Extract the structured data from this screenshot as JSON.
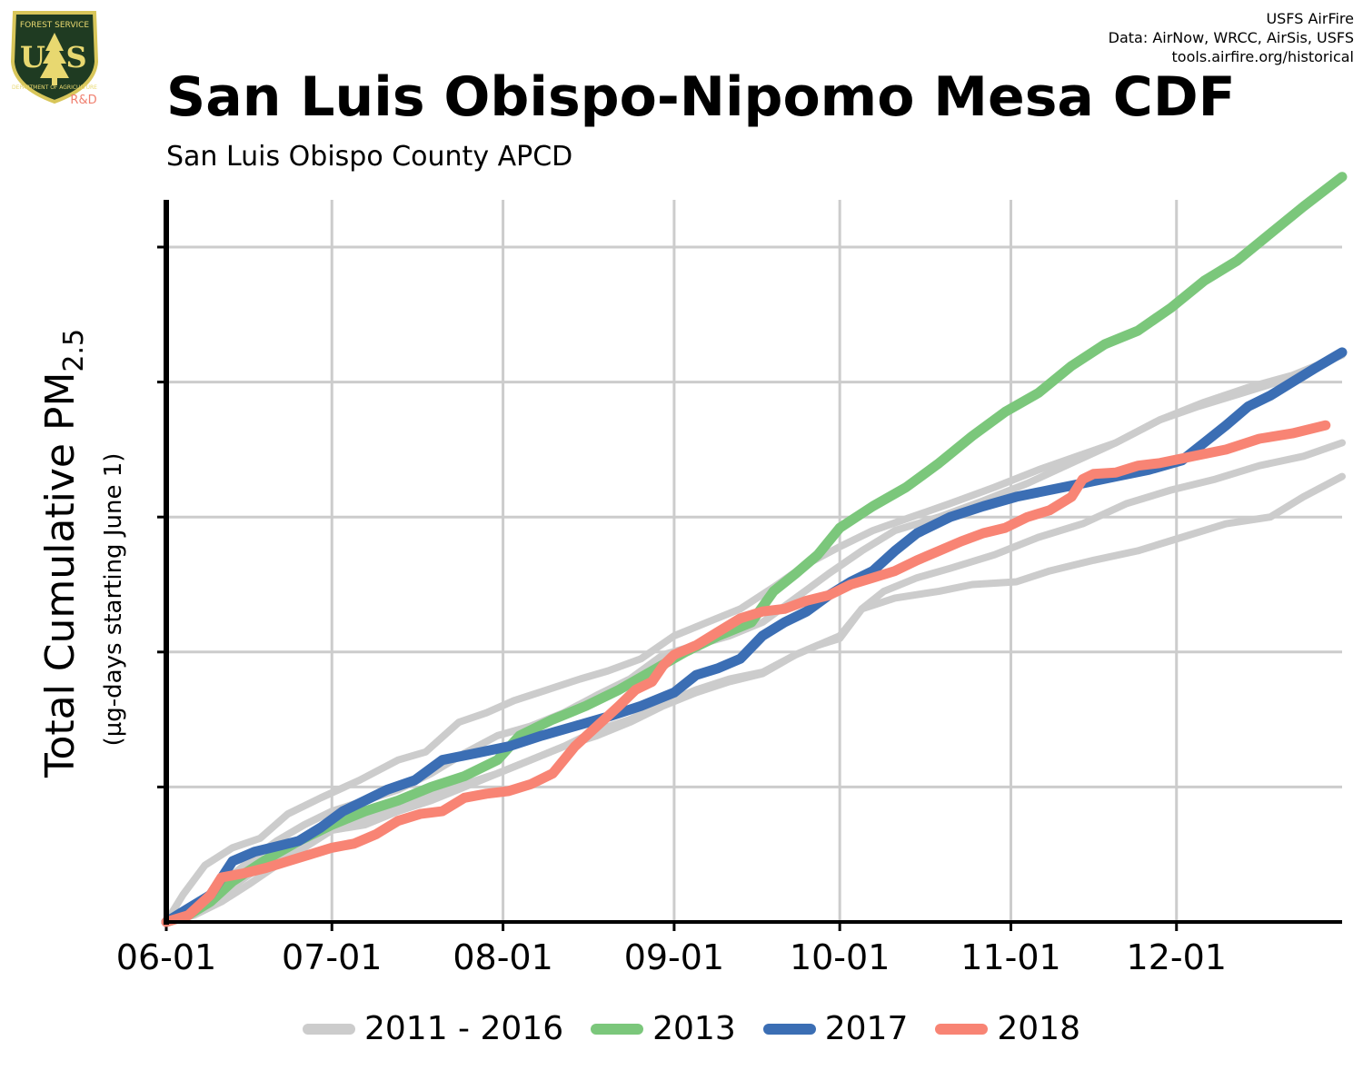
{
  "header": {
    "credits": [
      "USFS AirFire",
      "Data: AirNow, WRCC, AirSis, USFS",
      "tools.airfire.org/historical"
    ],
    "logo_text": [
      "FOREST SERVICE",
      "U",
      "S",
      "DEPARTMENT OF AGRICULTURE",
      "R&D"
    ],
    "logo_colors": {
      "shield": "#1f3b22",
      "border": "#d8c65a",
      "text": "#e8d870",
      "rd": "#f08070"
    }
  },
  "chart_data": {
    "type": "line",
    "title": "San Luis Obispo-Nipomo Mesa CDF",
    "subtitle": "San Luis Obispo County APCD",
    "ylabel": "Total Cumulative PM",
    "ylabel_subscript": "2.5",
    "ylabel_units": "(µg-days starting June 1)",
    "x_tick_labels": [
      "06-01",
      "07-01",
      "08-01",
      "09-01",
      "10-01",
      "11-01",
      "12-01"
    ],
    "x_ticks_day": [
      0,
      30,
      61,
      92,
      122,
      153,
      183
    ],
    "xlim": [
      0,
      213
    ],
    "ylim": [
      0,
      5.35
    ],
    "y_grid_count": 5,
    "y_tick_labels": [],
    "grid": true,
    "legend_position": "bottom",
    "colors": {
      "gray": "#cccccc",
      "green": "#7bc77b",
      "blue": "#3b6eb4",
      "red": "#f88474",
      "axis": "#000000"
    },
    "series": [
      {
        "name": "2011 - 2016",
        "group": "gray",
        "x": [
          0,
          3,
          7,
          12,
          17,
          22,
          28,
          35,
          42,
          47,
          53,
          58,
          63,
          69,
          75,
          80,
          86,
          92,
          98,
          104,
          110,
          116,
          122,
          128,
          135,
          142,
          150,
          158,
          165,
          172,
          180,
          187,
          195,
          203,
          210,
          213
        ],
        "y": [
          0.0,
          0.2,
          0.42,
          0.55,
          0.62,
          0.8,
          0.92,
          1.05,
          1.2,
          1.26,
          1.48,
          1.55,
          1.64,
          1.72,
          1.8,
          1.86,
          1.95,
          2.12,
          2.22,
          2.32,
          2.48,
          2.65,
          2.78,
          2.9,
          3.0,
          3.1,
          3.22,
          3.35,
          3.45,
          3.55,
          3.72,
          3.82,
          3.92,
          4.02,
          4.14,
          4.22
        ]
      },
      {
        "name": "2011 - 2016",
        "group": "gray",
        "x": [
          0,
          5,
          10,
          15,
          20,
          25,
          30,
          36,
          42,
          48,
          54,
          60,
          66,
          72,
          78,
          84,
          90,
          96,
          102,
          108,
          114,
          120,
          126,
          132,
          140,
          148,
          156,
          164,
          172,
          180,
          188,
          196,
          204,
          213
        ],
        "y": [
          0.0,
          0.12,
          0.28,
          0.45,
          0.6,
          0.72,
          0.82,
          0.9,
          0.98,
          1.1,
          1.25,
          1.38,
          1.45,
          1.55,
          1.68,
          1.8,
          1.98,
          2.05,
          2.12,
          2.22,
          2.4,
          2.58,
          2.75,
          2.9,
          3.0,
          3.12,
          3.25,
          3.4,
          3.55,
          3.72,
          3.85,
          3.96,
          4.05,
          4.2
        ]
      },
      {
        "name": "2011 - 2016",
        "group": "gray",
        "x": [
          0,
          5,
          10,
          15,
          20,
          25,
          30,
          36,
          42,
          48,
          54,
          60,
          66,
          72,
          78,
          84,
          90,
          96,
          102,
          108,
          114,
          118,
          122,
          126,
          130,
          136,
          142,
          150,
          158,
          166,
          174,
          182,
          190,
          198,
          206,
          213
        ],
        "y": [
          0.0,
          0.08,
          0.2,
          0.35,
          0.48,
          0.6,
          0.7,
          0.76,
          0.85,
          0.94,
          1.02,
          1.1,
          1.2,
          1.3,
          1.38,
          1.48,
          1.6,
          1.7,
          1.78,
          1.84,
          1.98,
          2.05,
          2.1,
          2.32,
          2.45,
          2.55,
          2.62,
          2.72,
          2.85,
          2.95,
          3.1,
          3.2,
          3.28,
          3.38,
          3.45,
          3.55
        ]
      },
      {
        "name": "2011 - 2016",
        "group": "gray",
        "x": [
          0,
          5,
          10,
          15,
          20,
          25,
          30,
          36,
          42,
          48,
          54,
          60,
          66,
          72,
          78,
          84,
          90,
          96,
          102,
          108,
          114,
          118,
          122,
          126,
          132,
          140,
          146,
          154,
          160,
          168,
          176,
          184,
          192,
          200,
          206,
          213
        ],
        "y": [
          0.0,
          0.05,
          0.15,
          0.28,
          0.42,
          0.55,
          0.68,
          0.72,
          0.82,
          0.9,
          1.0,
          1.1,
          1.2,
          1.3,
          1.42,
          1.5,
          1.62,
          1.72,
          1.8,
          1.85,
          1.98,
          2.05,
          2.12,
          2.32,
          2.4,
          2.45,
          2.5,
          2.52,
          2.6,
          2.68,
          2.75,
          2.85,
          2.95,
          3.0,
          3.15,
          3.3
        ]
      },
      {
        "name": "2013",
        "group": "green",
        "x": [
          0,
          4,
          8,
          12,
          18,
          24,
          30,
          36,
          42,
          48,
          54,
          60,
          64,
          70,
          76,
          82,
          88,
          94,
          100,
          106,
          110,
          114,
          118,
          122,
          128,
          134,
          140,
          146,
          152,
          158,
          164,
          170,
          176,
          182,
          188,
          194,
          200,
          206,
          213
        ],
        "y": [
          0.0,
          0.05,
          0.15,
          0.3,
          0.46,
          0.6,
          0.72,
          0.82,
          0.9,
          1.0,
          1.08,
          1.2,
          1.38,
          1.5,
          1.6,
          1.72,
          1.86,
          2.0,
          2.12,
          2.22,
          2.45,
          2.58,
          2.72,
          2.92,
          3.08,
          3.22,
          3.4,
          3.6,
          3.78,
          3.92,
          4.12,
          4.28,
          4.38,
          4.55,
          4.75,
          4.9,
          5.1,
          5.3,
          5.52
        ]
      },
      {
        "name": "2017",
        "group": "blue",
        "x": [
          0,
          4,
          8,
          12,
          16,
          20,
          24,
          28,
          32,
          36,
          40,
          45,
          50,
          56,
          62,
          68,
          74,
          80,
          86,
          92,
          96,
          100,
          104,
          108,
          112,
          116,
          120,
          124,
          128,
          132,
          136,
          142,
          148,
          154,
          160,
          166,
          172,
          178,
          184,
          188,
          192,
          196,
          200,
          204,
          208,
          213
        ],
        "y": [
          0.0,
          0.1,
          0.2,
          0.45,
          0.52,
          0.56,
          0.6,
          0.7,
          0.82,
          0.9,
          0.98,
          1.05,
          1.2,
          1.25,
          1.3,
          1.38,
          1.45,
          1.52,
          1.6,
          1.7,
          1.83,
          1.88,
          1.95,
          2.12,
          2.22,
          2.3,
          2.42,
          2.52,
          2.6,
          2.75,
          2.88,
          3.0,
          3.08,
          3.15,
          3.2,
          3.25,
          3.3,
          3.35,
          3.42,
          3.55,
          3.68,
          3.82,
          3.9,
          4.0,
          4.1,
          4.22
        ]
      },
      {
        "name": "2018",
        "group": "red",
        "x": [
          0,
          4,
          8,
          10,
          14,
          18,
          22,
          26,
          30,
          34,
          38,
          42,
          46,
          50,
          54,
          58,
          62,
          66,
          70,
          74,
          78,
          82,
          85,
          88,
          90,
          92,
          96,
          100,
          104,
          108,
          112,
          116,
          120,
          124,
          128,
          132,
          136,
          140,
          144,
          148,
          152,
          156,
          160,
          164,
          166,
          168,
          172,
          176,
          180,
          186,
          192,
          198,
          204,
          210
        ],
        "y": [
          0.0,
          0.05,
          0.2,
          0.33,
          0.36,
          0.4,
          0.45,
          0.5,
          0.55,
          0.58,
          0.65,
          0.75,
          0.8,
          0.82,
          0.92,
          0.95,
          0.97,
          1.02,
          1.1,
          1.3,
          1.45,
          1.6,
          1.72,
          1.78,
          1.9,
          1.98,
          2.05,
          2.15,
          2.25,
          2.3,
          2.32,
          2.38,
          2.42,
          2.5,
          2.55,
          2.6,
          2.68,
          2.75,
          2.82,
          2.88,
          2.92,
          3.0,
          3.05,
          3.15,
          3.28,
          3.32,
          3.33,
          3.38,
          3.4,
          3.45,
          3.5,
          3.58,
          3.62,
          3.68
        ]
      }
    ]
  },
  "legend": [
    {
      "label": "2011 - 2016",
      "color": "#cccccc"
    },
    {
      "label": "2013",
      "color": "#7bc77b"
    },
    {
      "label": "2017",
      "color": "#3b6eb4"
    },
    {
      "label": "2018",
      "color": "#f88474"
    }
  ]
}
